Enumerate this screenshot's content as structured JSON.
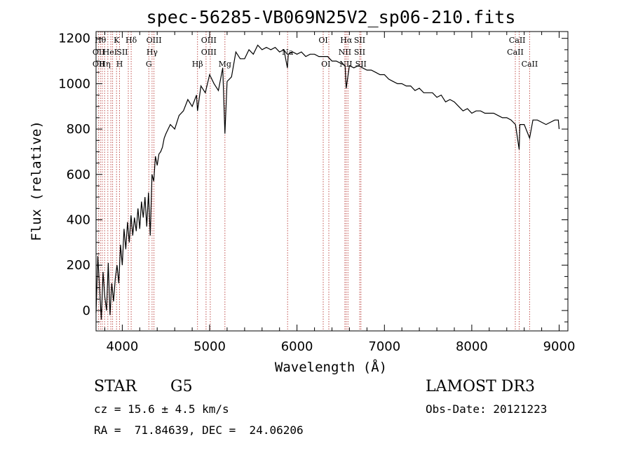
{
  "chart_data": {
    "type": "line",
    "title": "spec-56285-VB069N25V2_sp06-210.fits",
    "xlabel": "Wavelength (Å)",
    "ylabel": "Flux (relative)",
    "xlim": [
      3700,
      9100
    ],
    "ylim": [
      -90,
      1230
    ],
    "xticks": [
      4000,
      5000,
      6000,
      7000,
      8000,
      9000
    ],
    "yticks": [
      0,
      200,
      400,
      600,
      800,
      1000,
      1200
    ],
    "grid": false,
    "legend": "none",
    "line_color": "#000000",
    "marker_color": "#c0504d",
    "series": [
      {
        "x": [
          3700,
          3720,
          3740,
          3760,
          3780,
          3800,
          3820,
          3840,
          3860,
          3880,
          3900,
          3920,
          3940,
          3960,
          3980,
          4000,
          4020,
          4040,
          4060,
          4080,
          4100,
          4120,
          4140,
          4160,
          4180,
          4200,
          4220,
          4240,
          4260,
          4280,
          4300,
          4320,
          4340,
          4360,
          4380,
          4400,
          4420,
          4440,
          4460,
          4480,
          4500,
          4550,
          4600,
          4650,
          4700,
          4750,
          4800,
          4850,
          4861,
          4900,
          4950,
          5000,
          5050,
          5100,
          5150,
          5175,
          5200,
          5250,
          5300,
          5350,
          5400,
          5450,
          5500,
          5550,
          5600,
          5650,
          5700,
          5750,
          5800,
          5850,
          5890,
          5900,
          5950,
          6000,
          6050,
          6100,
          6150,
          6200,
          6250,
          6300,
          6350,
          6400,
          6450,
          6500,
          6550,
          6563,
          6600,
          6650,
          6700,
          6750,
          6800,
          6850,
          6900,
          6950,
          7000,
          7050,
          7100,
          7150,
          7200,
          7250,
          7300,
          7350,
          7400,
          7450,
          7500,
          7550,
          7600,
          7650,
          7700,
          7750,
          7800,
          7850,
          7900,
          7950,
          8000,
          8050,
          8100,
          8150,
          8200,
          8250,
          8300,
          8350,
          8400,
          8450,
          8500,
          8542,
          8550,
          8600,
          8662,
          8700,
          8750,
          8800,
          8850,
          8900,
          8950,
          8990,
          9000
        ],
        "y": [
          -10,
          240,
          100,
          -40,
          170,
          60,
          0,
          210,
          -20,
          120,
          40,
          140,
          200,
          120,
          290,
          200,
          360,
          270,
          390,
          300,
          420,
          330,
          410,
          350,
          450,
          360,
          480,
          410,
          500,
          370,
          520,
          330,
          600,
          570,
          680,
          640,
          690,
          700,
          720,
          760,
          780,
          820,
          800,
          860,
          880,
          930,
          900,
          950,
          880,
          990,
          960,
          1040,
          1000,
          970,
          1070,
          780,
          1010,
          1030,
          1140,
          1110,
          1110,
          1150,
          1130,
          1170,
          1150,
          1160,
          1150,
          1160,
          1140,
          1150,
          1070,
          1130,
          1140,
          1130,
          1140,
          1120,
          1130,
          1130,
          1120,
          1120,
          1120,
          1100,
          1100,
          1090,
          1080,
          980,
          1080,
          1070,
          1080,
          1070,
          1060,
          1060,
          1050,
          1040,
          1040,
          1020,
          1010,
          1000,
          1000,
          990,
          990,
          970,
          980,
          960,
          960,
          960,
          940,
          950,
          920,
          930,
          920,
          900,
          880,
          890,
          870,
          880,
          880,
          870,
          870,
          870,
          860,
          850,
          850,
          840,
          820,
          710,
          820,
          820,
          760,
          840,
          840,
          830,
          820,
          830,
          840,
          840,
          800
        ]
      }
    ],
    "line_markers": [
      {
        "x": 3727,
        "label": "OII"
      },
      {
        "x": 3750,
        "label": "Hθ"
      },
      {
        "x": 3771,
        "label": "Hη"
      },
      {
        "x": 3798,
        "label": "Hθ"
      },
      {
        "x": 3835,
        "label": "Hη"
      },
      {
        "x": 3869,
        "label": "HeI"
      },
      {
        "x": 3889,
        "label": "HeI"
      },
      {
        "x": 3934,
        "label": "K"
      },
      {
        "x": 3969,
        "label": "H"
      },
      {
        "x": 4069,
        "label": "SII"
      },
      {
        "x": 4102,
        "label": "Hδ"
      },
      {
        "x": 4304,
        "label": "G"
      },
      {
        "x": 4341,
        "label": "Hγ"
      },
      {
        "x": 4363,
        "label": "OIII"
      },
      {
        "x": 4861,
        "label": "Hβ"
      },
      {
        "x": 4959,
        "label": "OIII"
      },
      {
        "x": 5007,
        "label": "OIII"
      },
      {
        "x": 5175,
        "label": "Mg"
      },
      {
        "x": 5892,
        "label": "Na"
      },
      {
        "x": 6300,
        "label": "OI"
      },
      {
        "x": 6364,
        "label": "OI"
      },
      {
        "x": 6548,
        "label": "NII"
      },
      {
        "x": 6563,
        "label": "Hα"
      },
      {
        "x": 6583,
        "label": "NII"
      },
      {
        "x": 6717,
        "label": "SII"
      },
      {
        "x": 6731,
        "label": "SII"
      },
      {
        "x": 8498,
        "label": "CaII"
      },
      {
        "x": 8542,
        "label": "CaII"
      },
      {
        "x": 8662,
        "label": "CaII"
      }
    ],
    "marker_labels": [
      {
        "x": 3750,
        "text": "Hθ",
        "row": 0
      },
      {
        "x": 3730,
        "text": "OII",
        "row": 1
      },
      {
        "x": 3730,
        "text": "OII",
        "row": 2
      },
      {
        "x": 3800,
        "text": "Hη",
        "row": 2
      },
      {
        "x": 3860,
        "text": "HeI",
        "row": 1
      },
      {
        "x": 3934,
        "text": "K",
        "row": 0
      },
      {
        "x": 3969,
        "text": "H",
        "row": 2
      },
      {
        "x": 4000,
        "text": "SII",
        "row": 1
      },
      {
        "x": 4102,
        "text": "Hδ",
        "row": 0
      },
      {
        "x": 4304,
        "text": "G",
        "row": 2
      },
      {
        "x": 4341,
        "text": "Hγ",
        "row": 1
      },
      {
        "x": 4363,
        "text": "OIII",
        "row": 0
      },
      {
        "x": 4861,
        "text": "Hβ",
        "row": 2
      },
      {
        "x": 4990,
        "text": "OIII",
        "row": 0
      },
      {
        "x": 4990,
        "text": "OIII",
        "row": 1
      },
      {
        "x": 5175,
        "text": "Mg",
        "row": 2
      },
      {
        "x": 5892,
        "text": "Na",
        "row": 1
      },
      {
        "x": 6300,
        "text": "OI",
        "row": 0
      },
      {
        "x": 6330,
        "text": "OI",
        "row": 2
      },
      {
        "x": 6563,
        "text": "Hα",
        "row": 0
      },
      {
        "x": 6548,
        "text": "NII",
        "row": 1
      },
      {
        "x": 6560,
        "text": "NII",
        "row": 2
      },
      {
        "x": 6717,
        "text": "SII",
        "row": 0
      },
      {
        "x": 6717,
        "text": "SII",
        "row": 1
      },
      {
        "x": 6731,
        "text": "SII",
        "row": 2
      },
      {
        "x": 8520,
        "text": "CaII",
        "row": 0
      },
      {
        "x": 8498,
        "text": "CaII",
        "row": 1
      },
      {
        "x": 8662,
        "text": "CaII",
        "row": 2
      }
    ]
  },
  "info": {
    "class": "STAR",
    "subclass": "G5",
    "redshift": "cz = 15.6 ± 4.5 km/s",
    "coords": "RA =  71.84639, DEC =  24.06206",
    "survey": "LAMOST DR3",
    "obs_date": "Obs-Date: 20121223"
  }
}
